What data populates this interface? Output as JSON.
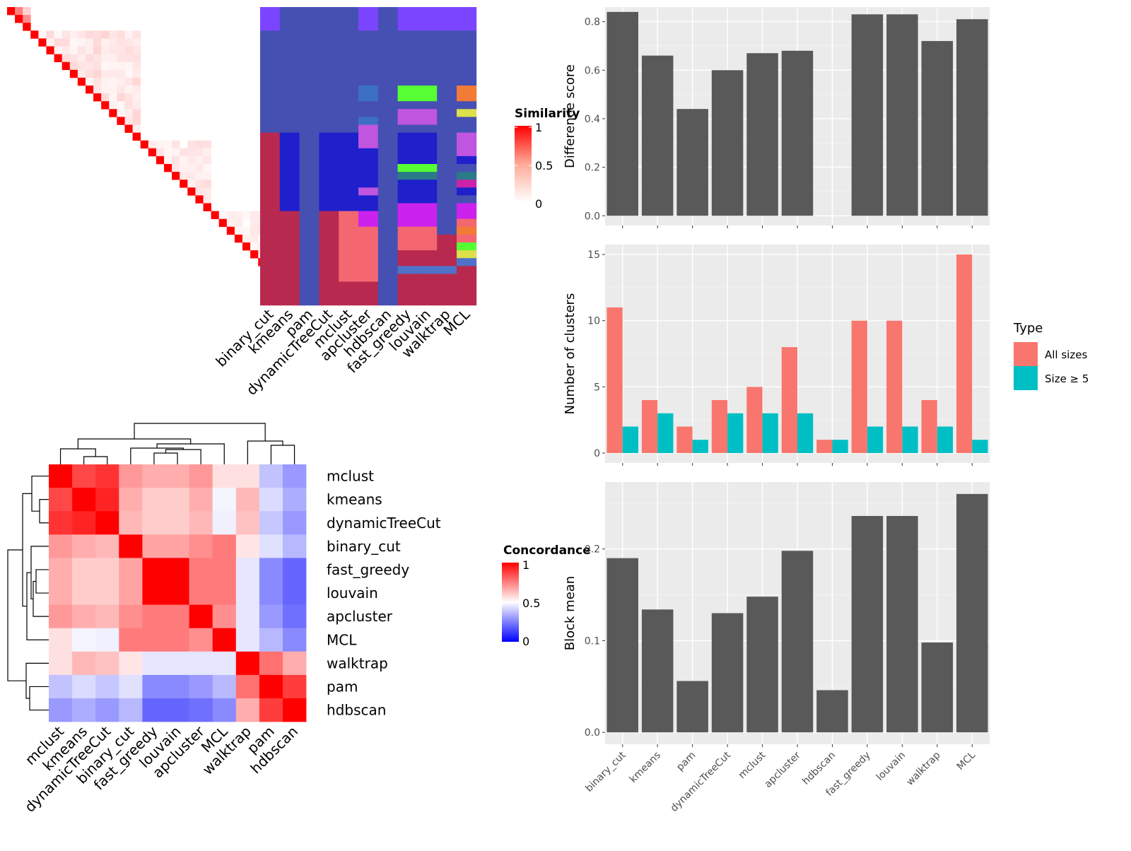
{
  "chart_data": [
    {
      "type": "heatmap",
      "name": "cell-similarity-heatmap",
      "legend_title": "Similarity",
      "legend_ticks": [
        1,
        0.5,
        0
      ],
      "n_cells": 38,
      "sim_blocks": [
        [
          0,
          3,
          0.55
        ],
        [
          3,
          17,
          0.1
        ],
        [
          17,
          26,
          0.08
        ],
        [
          26,
          38,
          0.06
        ]
      ],
      "sim_extra": [
        [
          1,
          2,
          0.45
        ],
        [
          0,
          1,
          0.5
        ],
        [
          36,
          37,
          0.6
        ],
        [
          35,
          36,
          0.3
        ]
      ],
      "colors_low": "#ffffff",
      "colors_high": "#ff0000"
    },
    {
      "type": "heatmap",
      "name": "cluster-assignment-grid",
      "columns": [
        "binary_cut",
        "kmeans",
        "pam",
        "dynamicTreeCut",
        "mclust",
        "apcluster",
        "hdbscan",
        "fast_greedy",
        "louvain",
        "walktrap",
        "MCL"
      ],
      "segments": [
        [
          [
            0,
            3,
            "#7b45ff"
          ],
          [
            3,
            16,
            "#4650b2"
          ],
          [
            16,
            38,
            "#b8294f"
          ]
        ],
        [
          [
            0,
            16,
            "#4650b2"
          ],
          [
            16,
            26,
            "#1f1fcc"
          ],
          [
            26,
            38,
            "#b8294f"
          ]
        ],
        [
          [
            0,
            38,
            "#4650b2"
          ]
        ],
        [
          [
            0,
            16,
            "#4650b2"
          ],
          [
            16,
            26,
            "#1f1fcc"
          ],
          [
            26,
            38,
            "#b8294f"
          ]
        ],
        [
          [
            0,
            16,
            "#4650b2"
          ],
          [
            16,
            26,
            "#1f1fcc"
          ],
          [
            26,
            35,
            "#f46770"
          ],
          [
            35,
            38,
            "#b8294f"
          ]
        ],
        [
          [
            0,
            3,
            "#7b45ff"
          ],
          [
            3,
            10,
            "#4650b2"
          ],
          [
            10,
            12,
            "#3d6fc2"
          ],
          [
            12,
            14,
            "#4650b2"
          ],
          [
            14,
            15,
            "#3d6fc2"
          ],
          [
            15,
            18,
            "#c055e0"
          ],
          [
            18,
            23,
            "#1f1fcc"
          ],
          [
            23,
            24,
            "#c055e0"
          ],
          [
            24,
            26,
            "#1f1fcc"
          ],
          [
            26,
            28,
            "#cc22ee"
          ],
          [
            28,
            35,
            "#f46770"
          ],
          [
            35,
            38,
            "#b8294f"
          ]
        ],
        [
          [
            0,
            38,
            "#4650b2"
          ]
        ],
        [
          [
            0,
            3,
            "#7b45ff"
          ],
          [
            3,
            10,
            "#4650b2"
          ],
          [
            10,
            12,
            "#55ff33"
          ],
          [
            12,
            13,
            "#4650b2"
          ],
          [
            13,
            15,
            "#c055e0"
          ],
          [
            15,
            16,
            "#4650b2"
          ],
          [
            16,
            20,
            "#1f1fcc"
          ],
          [
            20,
            21,
            "#55ff33"
          ],
          [
            21,
            22,
            "#2b7a88"
          ],
          [
            22,
            25,
            "#1f1fcc"
          ],
          [
            25,
            28,
            "#cc22ee"
          ],
          [
            28,
            31,
            "#f46770"
          ],
          [
            31,
            33,
            "#b8294f"
          ],
          [
            33,
            34,
            "#4f72c8"
          ],
          [
            34,
            38,
            "#b8294f"
          ]
        ],
        [
          [
            0,
            3,
            "#7b45ff"
          ],
          [
            3,
            10,
            "#4650b2"
          ],
          [
            10,
            12,
            "#55ff33"
          ],
          [
            12,
            13,
            "#4650b2"
          ],
          [
            13,
            15,
            "#c055e0"
          ],
          [
            15,
            16,
            "#4650b2"
          ],
          [
            16,
            20,
            "#1f1fcc"
          ],
          [
            20,
            21,
            "#55ff33"
          ],
          [
            21,
            22,
            "#2b7a88"
          ],
          [
            22,
            25,
            "#1f1fcc"
          ],
          [
            25,
            28,
            "#cc22ee"
          ],
          [
            28,
            31,
            "#f46770"
          ],
          [
            31,
            33,
            "#b8294f"
          ],
          [
            33,
            34,
            "#4f72c8"
          ],
          [
            34,
            38,
            "#b8294f"
          ]
        ],
        [
          [
            0,
            3,
            "#7b45ff"
          ],
          [
            3,
            29,
            "#4650b2"
          ],
          [
            29,
            33,
            "#b8294f"
          ],
          [
            33,
            34,
            "#4f72c8"
          ],
          [
            34,
            38,
            "#b8294f"
          ]
        ],
        [
          [
            0,
            3,
            "#7b45ff"
          ],
          [
            3,
            10,
            "#4650b2"
          ],
          [
            10,
            12,
            "#f27b35"
          ],
          [
            12,
            13,
            "#4650b2"
          ],
          [
            13,
            14,
            "#dce04a"
          ],
          [
            14,
            16,
            "#4650b2"
          ],
          [
            16,
            19,
            "#c055e0"
          ],
          [
            19,
            20,
            "#1f1fcc"
          ],
          [
            20,
            21,
            "#4650b2"
          ],
          [
            21,
            22,
            "#2b7a88"
          ],
          [
            22,
            23,
            "#cc22aa"
          ],
          [
            23,
            24,
            "#1f1fcc"
          ],
          [
            24,
            25,
            "#4650b2"
          ],
          [
            25,
            27,
            "#cc22ee"
          ],
          [
            27,
            28,
            "#f46770"
          ],
          [
            28,
            29,
            "#f27b35"
          ],
          [
            29,
            30,
            "#f46770"
          ],
          [
            30,
            31,
            "#55ff33"
          ],
          [
            31,
            32,
            "#dce04a"
          ],
          [
            32,
            33,
            "#4f72c8"
          ],
          [
            33,
            38,
            "#b8294f"
          ]
        ]
      ]
    },
    {
      "type": "heatmap",
      "name": "concordance-heatmap",
      "legend_title": "Concordance",
      "legend_ticks": [
        1,
        0.5,
        0
      ],
      "labels": [
        "mclust",
        "kmeans",
        "dynamicTreeCut",
        "binary_cut",
        "fast_greedy",
        "louvain",
        "apcluster",
        "MCL",
        "walktrap",
        "pam",
        "hdbscan"
      ],
      "matrix": [
        [
          1.0,
          0.86,
          0.9,
          0.7,
          0.66,
          0.66,
          0.7,
          0.56,
          0.56,
          0.38,
          0.3
        ],
        [
          0.86,
          1.0,
          0.93,
          0.66,
          0.6,
          0.6,
          0.66,
          0.48,
          0.64,
          0.43,
          0.34
        ],
        [
          0.9,
          0.93,
          1.0,
          0.64,
          0.6,
          0.6,
          0.64,
          0.47,
          0.62,
          0.39,
          0.3
        ],
        [
          0.7,
          0.66,
          0.64,
          1.0,
          0.68,
          0.68,
          0.72,
          0.76,
          0.55,
          0.44,
          0.36
        ],
        [
          0.66,
          0.6,
          0.6,
          0.68,
          1.0,
          1.0,
          0.76,
          0.76,
          0.45,
          0.27,
          0.2
        ],
        [
          0.66,
          0.6,
          0.6,
          0.68,
          1.0,
          1.0,
          0.76,
          0.76,
          0.45,
          0.27,
          0.2
        ],
        [
          0.7,
          0.66,
          0.64,
          0.72,
          0.76,
          0.76,
          1.0,
          0.72,
          0.45,
          0.3,
          0.22
        ],
        [
          0.56,
          0.48,
          0.47,
          0.76,
          0.76,
          0.76,
          0.72,
          1.0,
          0.45,
          0.36,
          0.27
        ],
        [
          0.56,
          0.64,
          0.62,
          0.55,
          0.45,
          0.45,
          0.45,
          0.45,
          1.0,
          0.78,
          0.66
        ],
        [
          0.38,
          0.43,
          0.39,
          0.44,
          0.27,
          0.27,
          0.3,
          0.36,
          0.78,
          1.0,
          0.88
        ],
        [
          0.3,
          0.34,
          0.3,
          0.36,
          0.2,
          0.2,
          0.22,
          0.27,
          0.66,
          0.88,
          1.0
        ]
      ],
      "colors": {
        "low": "#0000ff",
        "mid": "#ffffff",
        "high": "#ff0000"
      }
    },
    {
      "type": "bar",
      "name": "difference-score",
      "categories": [
        "binary_cut",
        "kmeans",
        "pam",
        "dynamicTreeCut",
        "mclust",
        "apcluster",
        "hdbscan",
        "fast_greedy",
        "louvain",
        "walktrap",
        "MCL"
      ],
      "values": [
        0.84,
        0.66,
        0.44,
        0.6,
        0.67,
        0.68,
        0,
        0.83,
        0.83,
        0.72,
        0.81
      ],
      "ylabel": "Difference score",
      "ylim": [
        -0.04,
        0.86
      ],
      "yticks": [
        0.0,
        0.2,
        0.4,
        0.6,
        0.8
      ],
      "ytick_labels": [
        "0.0",
        "0.2",
        "0.4",
        "0.6",
        "0.8"
      ],
      "color": "#595959"
    },
    {
      "type": "bar",
      "name": "number-of-clusters",
      "categories": [
        "binary_cut",
        "kmeans",
        "pam",
        "dynamicTreeCut",
        "mclust",
        "apcluster",
        "hdbscan",
        "fast_greedy",
        "louvain",
        "walktrap",
        "MCL"
      ],
      "series": [
        {
          "name": "All sizes",
          "values": [
            11,
            4,
            2,
            4,
            5,
            8,
            1,
            10,
            10,
            4,
            15
          ],
          "color": "#f8766d"
        },
        {
          "name": "Size ≥ 5",
          "values": [
            2,
            3,
            1,
            3,
            3,
            3,
            1,
            2,
            2,
            2,
            1
          ],
          "color": "#00bfc4"
        }
      ],
      "ylabel": "Number of clusters",
      "ylim": [
        -0.75,
        15.75
      ],
      "yticks": [
        0,
        5,
        10,
        15
      ],
      "ytick_labels": [
        "0",
        "5",
        "10",
        "15"
      ],
      "legend_title": "Type",
      "legend": "right"
    },
    {
      "type": "bar",
      "name": "block-mean",
      "categories": [
        "binary_cut",
        "kmeans",
        "pam",
        "dynamicTreeCut",
        "mclust",
        "apcluster",
        "hdbscan",
        "fast_greedy",
        "louvain",
        "walktrap",
        "MCL"
      ],
      "values": [
        0.19,
        0.134,
        0.056,
        0.13,
        0.148,
        0.198,
        0.046,
        0.236,
        0.236,
        0.098,
        0.26
      ],
      "ylabel": "Block mean",
      "ylim": [
        -0.013,
        0.273
      ],
      "yticks": [
        0.0,
        0.1,
        0.2
      ],
      "ytick_labels": [
        "0.0",
        "0.1",
        "0.2"
      ],
      "color": "#595959"
    }
  ]
}
